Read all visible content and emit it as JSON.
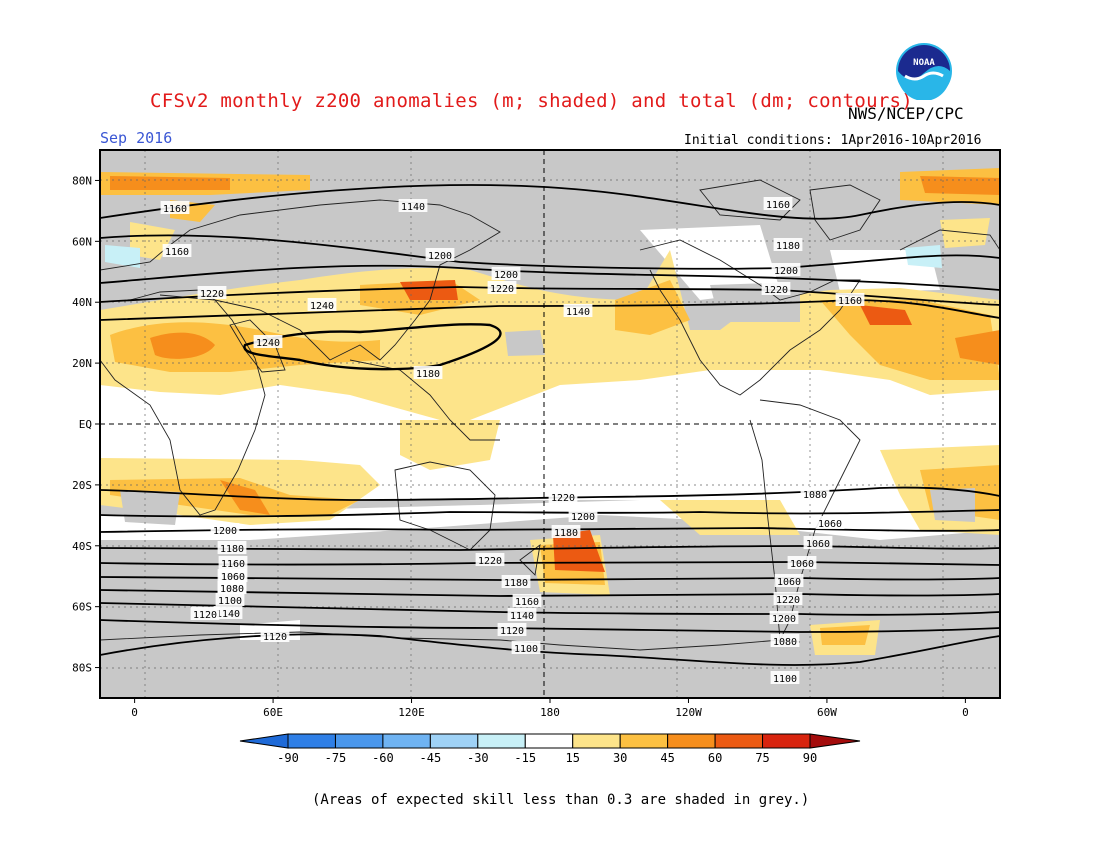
{
  "title": "CFSv2 monthly z200 anomalies (m; shaded) and total (dm; contours)",
  "org": "NWS/NCEP/CPC",
  "logo_text": "NOAA",
  "month": "Sep 2016",
  "initial_conditions": "Initial conditions: 1Apr2016-10Apr2016",
  "footnote": "(Areas of expected skill less than 0.3 are shaded in grey.)",
  "map": {
    "lat_labels": [
      "80N",
      "60N",
      "40N",
      "20N",
      "EQ",
      "20S",
      "40S",
      "60S",
      "80S"
    ],
    "lat_values": [
      80,
      60,
      40,
      20,
      0,
      -20,
      -40,
      -60,
      -80
    ],
    "lon_labels": [
      "0",
      "60E",
      "120E",
      "180",
      "120W",
      "60W",
      "0"
    ],
    "lon_values": [
      0,
      60,
      120,
      180,
      240,
      300,
      360
    ],
    "lon_range": [
      -15,
      375
    ],
    "lat_range": [
      -90,
      90
    ],
    "contour_labels": [
      "1160",
      "1140",
      "1160",
      "1200",
      "1220",
      "1240",
      "1240",
      "1180",
      "1200",
      "1220",
      "1140",
      "1160",
      "1180",
      "1200",
      "1220",
      "1160",
      "1220",
      "1220",
      "1200",
      "1200",
      "1180",
      "1180",
      "1160",
      "1160",
      "1140",
      "1140",
      "1120",
      "1120",
      "1100",
      "1100",
      "1080",
      "1080",
      "1060",
      "1060",
      "1060",
      "1060",
      "1220",
      "1200",
      "1180",
      "1160",
      "1140",
      "1120",
      "1100",
      "1080",
      "1060"
    ]
  },
  "colorbar": {
    "ticks": [
      "-90",
      "-75",
      "-60",
      "-45",
      "-30",
      "-15",
      "15",
      "30",
      "45",
      "60",
      "75",
      "90"
    ],
    "colors": [
      "#1e6ad8",
      "#2f7fe6",
      "#4a97ec",
      "#6fb3f2",
      "#9fd2f6",
      "#c8f0f7",
      "#ffffff",
      "#fde48a",
      "#fcc042",
      "#f68e1c",
      "#ec5a12",
      "#d8240e",
      "#a40c0c"
    ]
  },
  "palette": {
    "grey": "#c8c8c8",
    "light_yellow": "#fde48a",
    "light_orange": "#fcc042",
    "orange": "#f68e1c",
    "dark_orange": "#ec5a12",
    "light_blue": "#c8f0f7",
    "title_red": "#e21a1a",
    "month_blue": "#3a56d4"
  }
}
